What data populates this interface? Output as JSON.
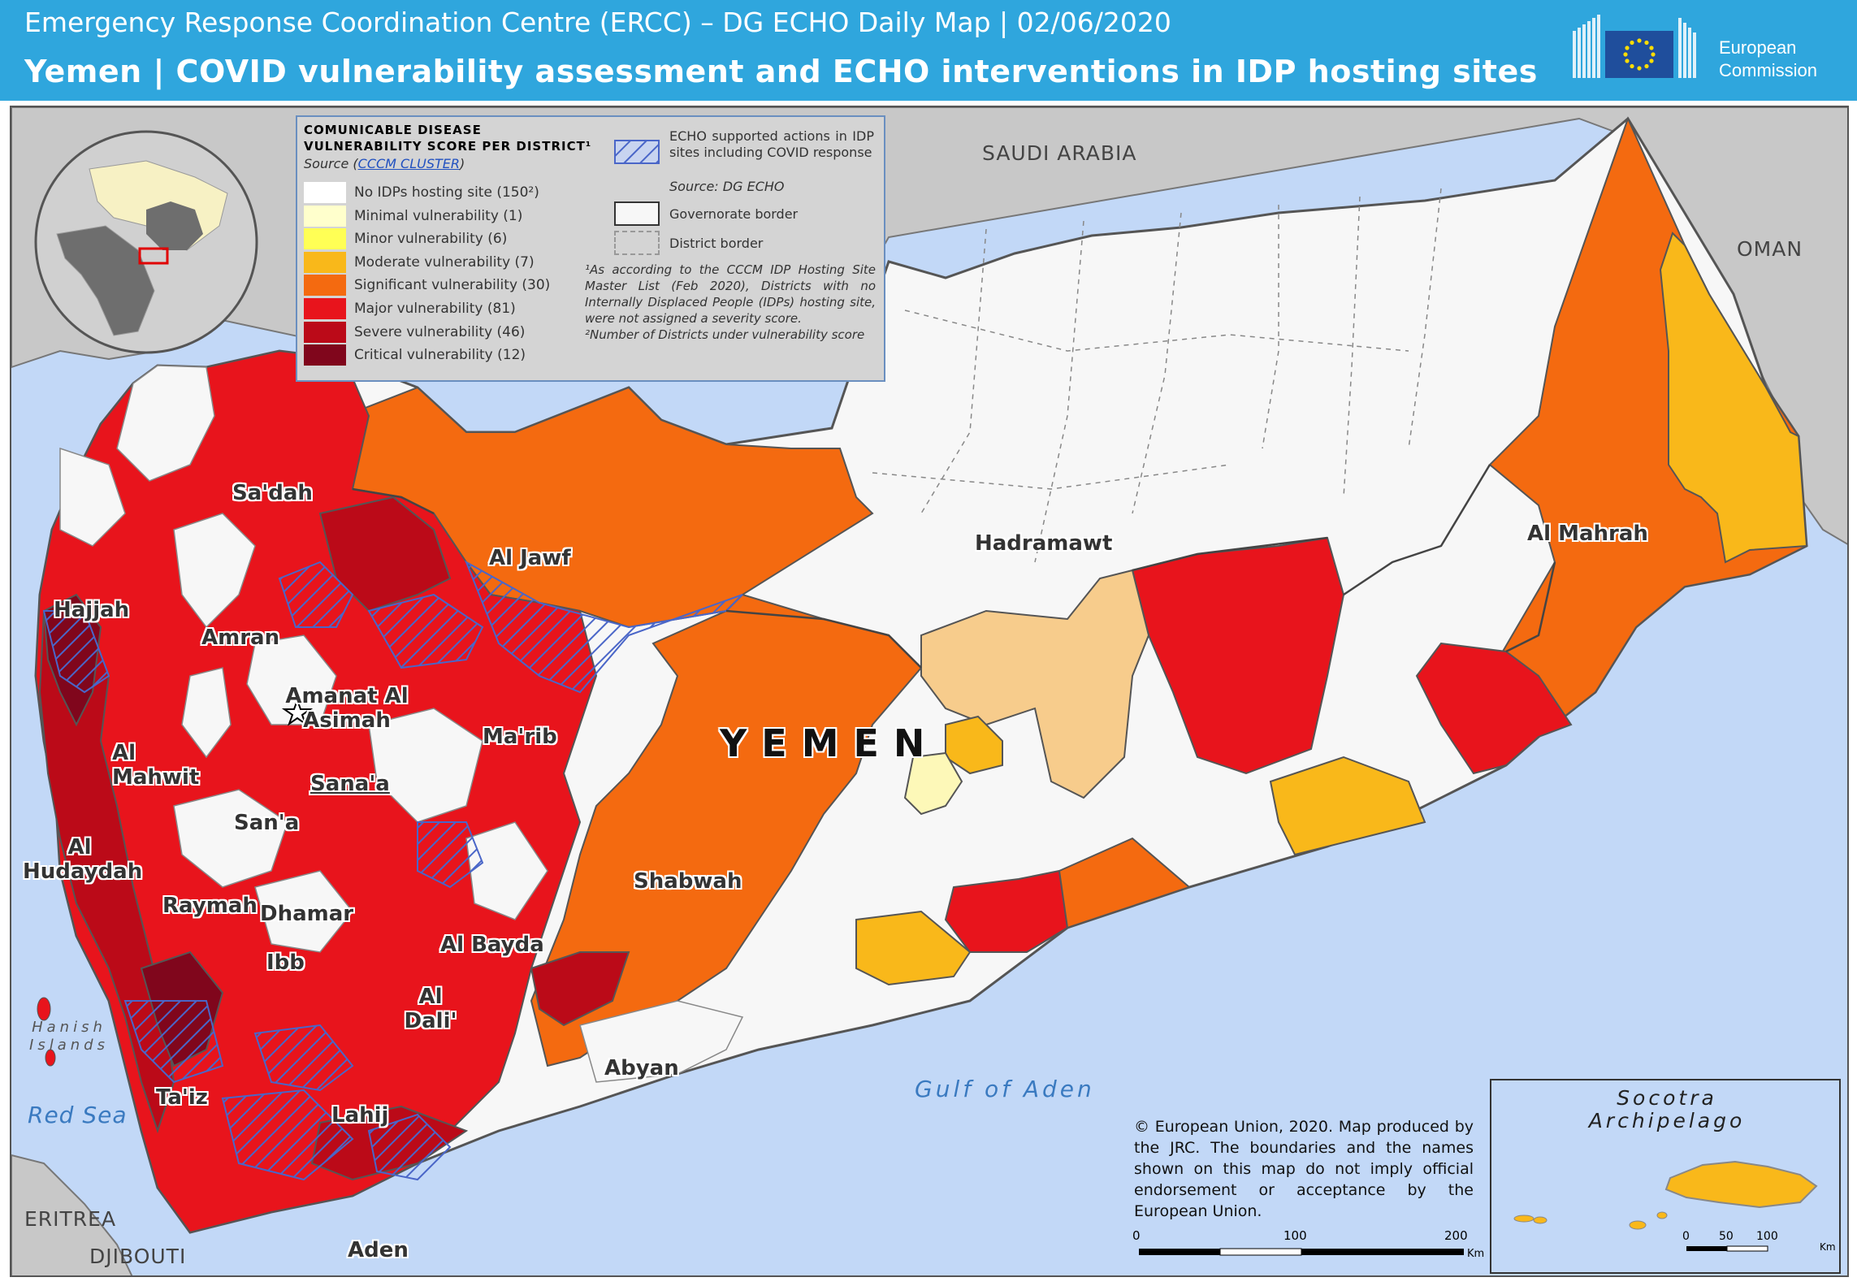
{
  "header": {
    "subtitle": "Emergency Response Coordination Centre (ERCC) – DG ECHO Daily Map | 02/06/2020",
    "title": "Yemen | COVID vulnerability assessment and ECHO interventions in IDP hosting sites",
    "logo_text_line1": "European",
    "logo_text_line2": "Commission",
    "colors": {
      "header_bg": "#2fa6dd",
      "eu_flag_blue": "#1f4e9c",
      "eu_star_yellow": "#ffdd00"
    }
  },
  "legend": {
    "title_line1": "Comunicable disease",
    "title_line2": "vulnerability score per district¹",
    "source_prefix": "Source (",
    "source_link": "CCCM CLUSTER",
    "source_suffix": ")",
    "categories": [
      {
        "label": "No IDPs hosting site (150²)",
        "color": "#ffffff"
      },
      {
        "label": "Minimal vulnerability (1)",
        "color": "#ffffcc"
      },
      {
        "label": "Minor vulnerability (6)",
        "color": "#ffff55"
      },
      {
        "label": "Moderate vulnerability (7)",
        "color": "#f9b81a"
      },
      {
        "label": "Significant vulnerability (30)",
        "color": "#f46a10"
      },
      {
        "label": "Major vulnerability (81)",
        "color": "#e8141c"
      },
      {
        "label": "Severe vulnerability (46)",
        "color": "#bb0a18"
      },
      {
        "label": "Critical vulnerability (12)",
        "color": "#80061c"
      }
    ],
    "echo_label": "ECHO supported actions in IDP sites including COVID response",
    "echo_source": "Source: DG ECHO",
    "governorate_border": "Governorate border",
    "district_border": "District border",
    "note1": "¹As according to the CCCM IDP Hosting Site Master List (Feb 2020), Districts with no Internally Displaced People (IDPs) hosting site, were not assigned a severity score.",
    "note2": "²Number of Districts under vulnerability score"
  },
  "map": {
    "countries": [
      "SAUDI ARABIA",
      "OMAN",
      "ERITREA",
      "DJIBOUTI"
    ],
    "country_name": "YEMEN",
    "seas": [
      "Gulf of Aden",
      "Red Sea"
    ],
    "islands": "Hanish Islands",
    "capital": "Sana'a",
    "governorates": [
      "Sa'dah",
      "Al Jawf",
      "Hajjah",
      "Amran",
      "Amanat Al Asimah",
      "Ma'rib",
      "Al Mahwit",
      "San'a",
      "Al Hudaydah",
      "Raymah",
      "Dhamar",
      "Al Bayda",
      "Ibb",
      "Al Dali'",
      "Ta'iz",
      "Lahij",
      "Abyan",
      "Aden",
      "Shabwah",
      "Hadramawt",
      "Al Mahrah"
    ],
    "colors": {
      "land_other": "#c8c8c8",
      "sea": "#c2d8f7",
      "border": "#555555"
    }
  },
  "inset": {
    "title_line1": "Socotra",
    "title_line2": "Archipelago",
    "scale": [
      "0",
      "50",
      "100"
    ],
    "scale_unit": "Km"
  },
  "scale_bar": {
    "ticks": [
      "0",
      "100",
      "200"
    ],
    "unit": "Km"
  },
  "copyright": "© European Union, 2020. Map produced by the JRC. The boundaries and the names shown on this map do not imply official endorsement or acceptance by the European Union."
}
